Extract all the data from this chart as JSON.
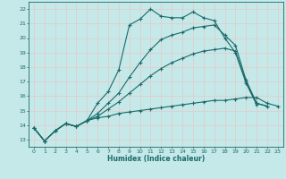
{
  "title": "",
  "xlabel": "Humidex (Indice chaleur)",
  "ylabel": "",
  "bg_color": "#c5e8e8",
  "grid_color": "#e8c8c8",
  "line_color": "#1a6b6b",
  "xlim": [
    -0.5,
    23.5
  ],
  "ylim": [
    12.5,
    22.5
  ],
  "xticks": [
    0,
    1,
    2,
    3,
    4,
    5,
    6,
    7,
    8,
    9,
    10,
    11,
    12,
    13,
    14,
    15,
    16,
    17,
    18,
    19,
    20,
    21,
    22,
    23
  ],
  "yticks": [
    13,
    14,
    15,
    16,
    17,
    18,
    19,
    20,
    21,
    22
  ],
  "line1_x": [
    0,
    1,
    2,
    3,
    4,
    5,
    6,
    7,
    8,
    9,
    10,
    11,
    12,
    13,
    14,
    15,
    16,
    17,
    18,
    19,
    20,
    21
  ],
  "line1_y": [
    13.8,
    12.9,
    13.6,
    14.1,
    13.9,
    14.3,
    15.5,
    16.3,
    17.8,
    20.9,
    21.3,
    22.0,
    21.5,
    21.4,
    21.4,
    21.8,
    21.4,
    21.2,
    20.0,
    19.0,
    16.9,
    15.4
  ],
  "line2_x": [
    0,
    1,
    2,
    3,
    4,
    5,
    6,
    7,
    8,
    9,
    10,
    11,
    12,
    13,
    14,
    15,
    16,
    17,
    18,
    19,
    20,
    21,
    22,
    23
  ],
  "line2_y": [
    13.8,
    12.9,
    13.6,
    14.1,
    13.9,
    14.3,
    14.5,
    14.6,
    14.8,
    14.9,
    15.0,
    15.1,
    15.2,
    15.3,
    15.4,
    15.5,
    15.6,
    15.7,
    15.7,
    15.8,
    15.9,
    15.9,
    15.5,
    15.3
  ],
  "line3_x": [
    0,
    1,
    2,
    3,
    4,
    5,
    6,
    7,
    8,
    9,
    10,
    11,
    12,
    13,
    14,
    15,
    16,
    17,
    18,
    19,
    20,
    21,
    22
  ],
  "line3_y": [
    13.8,
    12.9,
    13.6,
    14.1,
    13.9,
    14.3,
    14.6,
    15.1,
    15.6,
    16.2,
    16.8,
    17.4,
    17.9,
    18.3,
    18.6,
    18.9,
    19.1,
    19.2,
    19.3,
    19.1,
    17.0,
    15.5,
    15.3
  ],
  "line4_x": [
    0,
    1,
    2,
    3,
    4,
    5,
    6,
    7,
    8,
    9,
    10,
    11,
    12,
    13,
    14,
    15,
    16,
    17,
    18,
    19,
    20,
    21,
    22
  ],
  "line4_y": [
    13.8,
    12.9,
    13.6,
    14.1,
    13.9,
    14.3,
    14.8,
    15.5,
    16.2,
    17.3,
    18.3,
    19.2,
    19.9,
    20.2,
    20.4,
    20.7,
    20.8,
    20.9,
    20.2,
    19.5,
    17.1,
    15.5,
    15.3
  ]
}
